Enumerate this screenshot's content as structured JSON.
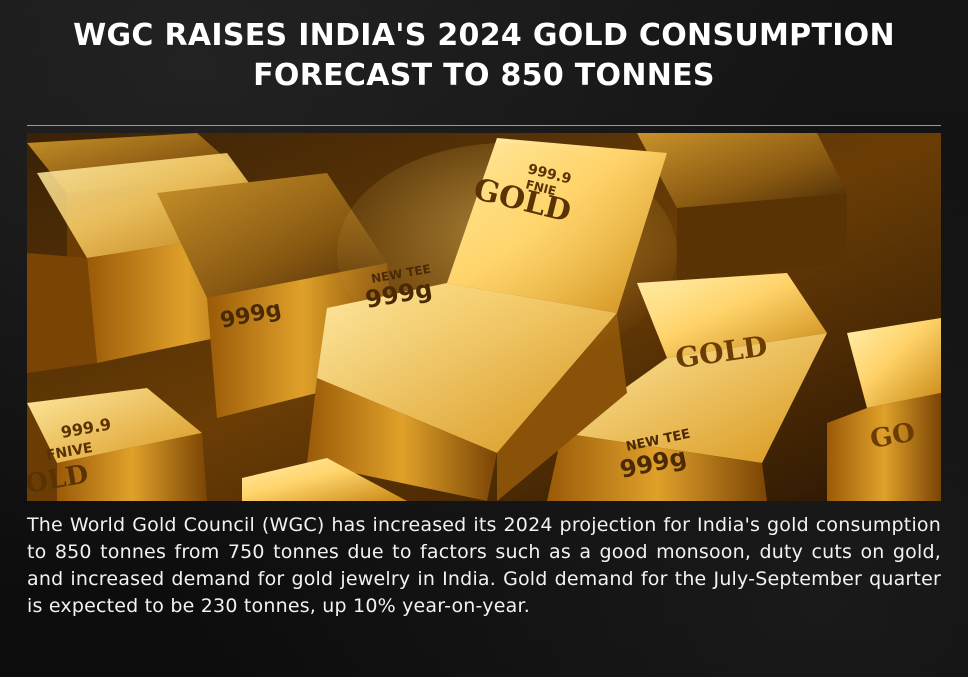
{
  "headline": {
    "line1": "WGC RAISES INDIA'S 2024 GOLD CONSUMPTION",
    "line2": "FORECAST TO 850 TONNES"
  },
  "photo": {
    "description_icon": "gold-bars-photo",
    "bar_labels": {
      "center_fine": "999.9",
      "center_fine2": "FNIE",
      "center_gold": "GOLD",
      "center_brand": "NEW TEE",
      "center_weight": "999g",
      "left_fine": "999.9",
      "left_fnive": "FNIVE",
      "left_gold": "OLD",
      "right_gold": "GOLD",
      "right_brand": "NEW TEE",
      "right_weight": "999g",
      "far_left_weight": "999g",
      "far_right_gold": "GO"
    }
  },
  "article": {
    "body": "The World Gold Council (WGC) has increased its 2024 projection for India's gold consumption to 850 tonnes from 750 tonnes due to factors such as a good monsoon, duty cuts on gold, and increased demand for gold jewelry in India. Gold demand for the July-September quarter is expected to be 230 tonnes, up 10% year-on-year."
  },
  "colors": {
    "background": "#0f0f0f",
    "headline": "#ffffff",
    "gold_light": "#ffd36a",
    "gold_mid": "#d99a1e",
    "gold_dark": "#6b3d05"
  }
}
